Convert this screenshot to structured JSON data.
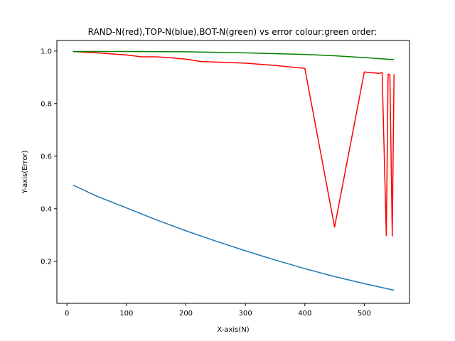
{
  "chart_data": {
    "type": "line",
    "title": "RAND-N(red),TOP-N(blue),BOT-N(green) vs error colour:green order:",
    "xlabel": "X-axis(N)",
    "ylabel": "Y-axis(Error)",
    "xlim": [
      -17,
      576
    ],
    "ylim": [
      0.04,
      1.04
    ],
    "xticks": [
      0,
      100,
      200,
      300,
      400,
      500
    ],
    "yticks": [
      0.2,
      0.4,
      0.6,
      0.8,
      1.0
    ],
    "xtick_labels": [
      "0",
      "100",
      "200",
      "300",
      "400",
      "500"
    ],
    "ytick_labels": [
      "0.2",
      "0.4",
      "0.6",
      "0.8",
      "1.0"
    ],
    "grid": false,
    "series": [
      {
        "color": "#1f77b4",
        "x": [
          10,
          50,
          100,
          150,
          200,
          250,
          300,
          350,
          400,
          450,
          500,
          550
        ],
        "y": [
          0.49,
          0.448,
          0.403,
          0.358,
          0.316,
          0.277,
          0.24,
          0.205,
          0.172,
          0.142,
          0.115,
          0.09
        ]
      },
      {
        "color": "#ff0000",
        "x": [
          10,
          50,
          100,
          125,
          150,
          175,
          200,
          225,
          250,
          300,
          350,
          400,
          450,
          500,
          525,
          530,
          537,
          540,
          543,
          547,
          550
        ],
        "y": [
          0.998,
          0.993,
          0.985,
          0.978,
          0.978,
          0.974,
          0.969,
          0.96,
          0.958,
          0.954,
          0.945,
          0.934,
          0.33,
          0.92,
          0.915,
          0.918,
          0.297,
          0.912,
          0.91,
          0.296,
          0.912
        ]
      },
      {
        "color": "#008000",
        "x": [
          10,
          100,
          200,
          300,
          400,
          450,
          500,
          550
        ],
        "y": [
          0.998,
          0.998,
          0.997,
          0.993,
          0.987,
          0.982,
          0.975,
          0.967
        ]
      }
    ]
  }
}
